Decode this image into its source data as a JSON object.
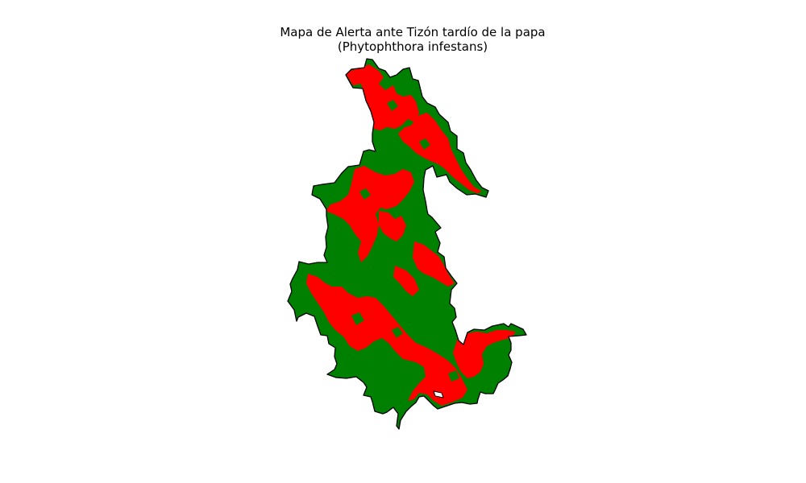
{
  "figure": {
    "title_line1": "Mapa de Alerta ante Tizón tardío de la papa",
    "title_line2": "(Phytophthora infestans)"
  },
  "map": {
    "region_fill": "#008000",
    "alert_fill": "#ff0000",
    "border_color": "#000000",
    "background": "#ffffff"
  }
}
